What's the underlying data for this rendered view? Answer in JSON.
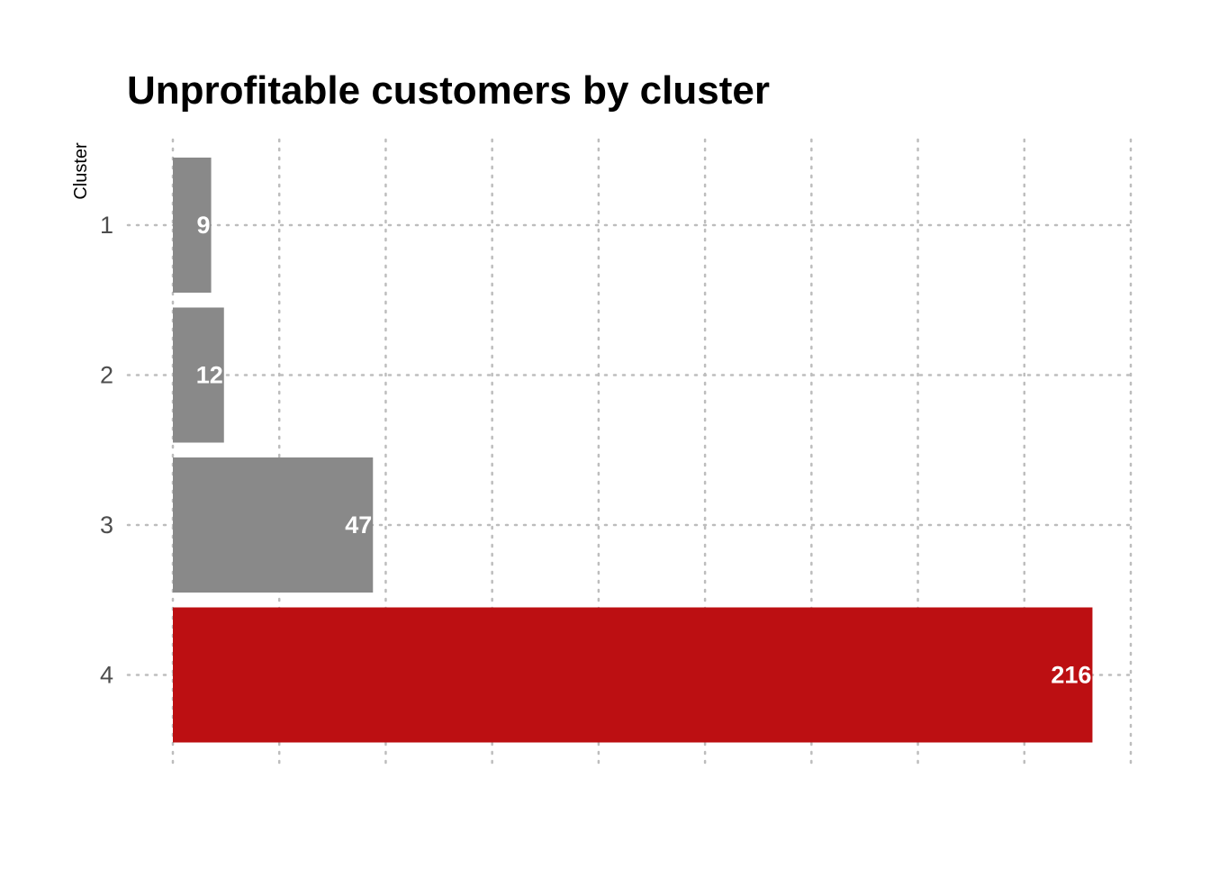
{
  "chart_data": {
    "type": "bar",
    "orientation": "horizontal",
    "title": "Unprofitable customers by cluster",
    "xlabel": "",
    "ylabel": "Cluster",
    "categories": [
      "1",
      "2",
      "3",
      "4"
    ],
    "values": [
      9,
      12,
      47,
      216
    ],
    "data_labels": [
      "9",
      "12",
      "47",
      "216"
    ],
    "xlim": [
      0,
      225
    ],
    "x_gridlines": [
      0,
      25,
      50,
      75,
      100,
      125,
      150,
      175,
      200,
      225
    ],
    "x_tick_labels_shown": false,
    "grid": true,
    "grid_style": "dotted",
    "legend": "none",
    "colors": {
      "default_bar": "#898989",
      "highlight_bar": "#bc0f12",
      "highlight_category": "4",
      "grid": "#bdbdbd",
      "data_label": "#ffffff",
      "tick_label": "#4d4d4d",
      "title": "#000000"
    }
  }
}
